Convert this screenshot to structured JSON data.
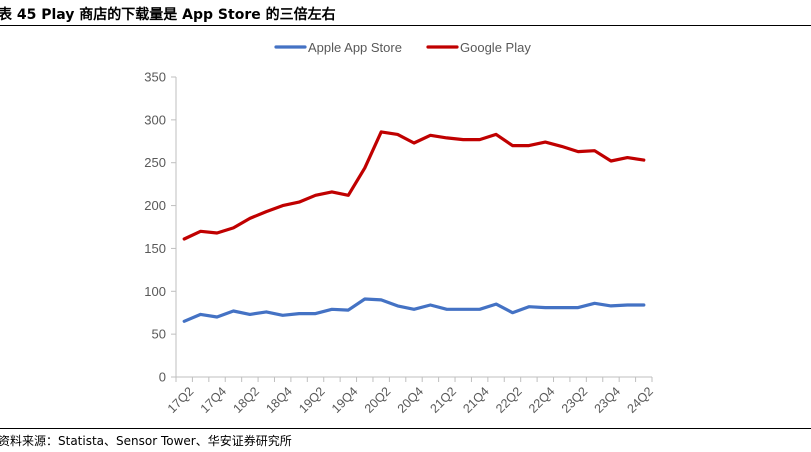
{
  "header": {
    "title": "表 45 Play 商店的下载量是 App Store 的三倍左右"
  },
  "footer": {
    "source": "资料来源：Statista、Sensor Tower、华安证券研究所"
  },
  "colors": {
    "apple": "#4472C4",
    "google": "#C00000",
    "axis": "#BFBFBF",
    "text": "#595959"
  },
  "chart_data": {
    "type": "line",
    "title": "",
    "xlabel": "",
    "ylabel": "",
    "ylim": [
      0,
      350
    ],
    "yticks": [
      0,
      50,
      100,
      150,
      200,
      250,
      300,
      350
    ],
    "grid": false,
    "legend": "top",
    "categories": [
      "17Q2",
      "17Q3",
      "17Q4",
      "18Q1",
      "18Q2",
      "18Q3",
      "18Q4",
      "19Q1",
      "19Q2",
      "19Q3",
      "19Q4",
      "20Q1",
      "20Q2",
      "20Q3",
      "20Q4",
      "21Q1",
      "21Q2",
      "21Q3",
      "21Q4",
      "22Q1",
      "22Q2",
      "22Q3",
      "22Q4",
      "23Q1",
      "23Q2",
      "23Q3",
      "23Q4",
      "24Q1",
      "24Q2"
    ],
    "tick_labels": [
      "17Q2",
      "17Q4",
      "18Q2",
      "18Q4",
      "19Q2",
      "19Q4",
      "20Q2",
      "20Q4",
      "21Q2",
      "21Q4",
      "22Q2",
      "22Q4",
      "23Q2",
      "23Q4",
      "24Q2"
    ],
    "series": [
      {
        "name": "Apple App Store",
        "color": "#4472C4",
        "values": [
          65,
          73,
          70,
          77,
          73,
          76,
          72,
          74,
          74,
          79,
          78,
          91,
          90,
          83,
          79,
          84,
          79,
          79,
          79,
          85,
          75,
          82,
          81,
          81,
          81,
          86,
          83,
          84,
          84
        ]
      },
      {
        "name": "Google Play",
        "color": "#C00000",
        "values": [
          161,
          170,
          168,
          174,
          185,
          193,
          200,
          204,
          212,
          216,
          212,
          244,
          286,
          283,
          273,
          282,
          279,
          277,
          277,
          283,
          270,
          270,
          274,
          269,
          263,
          264,
          252,
          256,
          253
        ]
      }
    ]
  }
}
